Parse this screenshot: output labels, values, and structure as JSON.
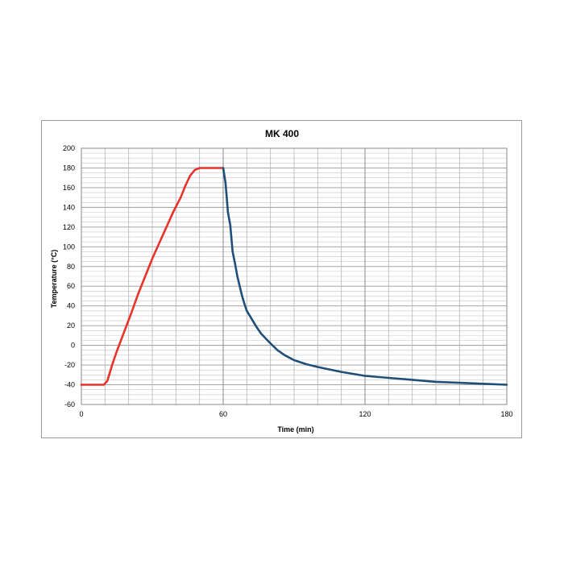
{
  "chart_data": {
    "type": "line",
    "title": "MK 400",
    "xlabel": "Time (min)",
    "ylabel": "Temperature (°C)",
    "xlim": [
      0,
      180
    ],
    "ylim": [
      -60,
      200
    ],
    "xticks": [
      0,
      60,
      120,
      180
    ],
    "yticks": [
      -60,
      -40,
      -20,
      0,
      20,
      40,
      60,
      80,
      100,
      120,
      140,
      160,
      180,
      200
    ],
    "grid": true,
    "legend": "none",
    "series": [
      {
        "color": "#e8322a",
        "x": [
          0,
          9.5,
          11,
          13,
          15,
          18,
          21,
          24,
          27,
          30,
          33,
          36,
          39,
          42,
          44,
          46,
          48,
          50,
          54,
          60
        ],
        "y": [
          -40,
          -40,
          -36,
          -20,
          -6,
          13,
          32,
          52,
          70,
          88,
          104,
          120,
          136,
          150,
          162,
          172,
          178,
          180,
          180,
          180
        ]
      },
      {
        "color": "#1f4e79",
        "x": [
          60,
          61,
          62,
          63,
          64,
          65,
          66,
          67,
          68,
          69,
          70,
          72,
          74,
          76,
          78,
          80,
          83,
          86,
          90,
          95,
          100,
          110,
          120,
          130,
          140,
          150,
          160,
          170,
          180
        ],
        "y": [
          180,
          165,
          135,
          122,
          95,
          83,
          70,
          60,
          50,
          42,
          35,
          27,
          19,
          12,
          7,
          2,
          -5,
          -10,
          -15,
          -19,
          -22,
          -27,
          -31,
          -33,
          -35,
          -37,
          -38,
          -39,
          -40
        ]
      }
    ]
  }
}
